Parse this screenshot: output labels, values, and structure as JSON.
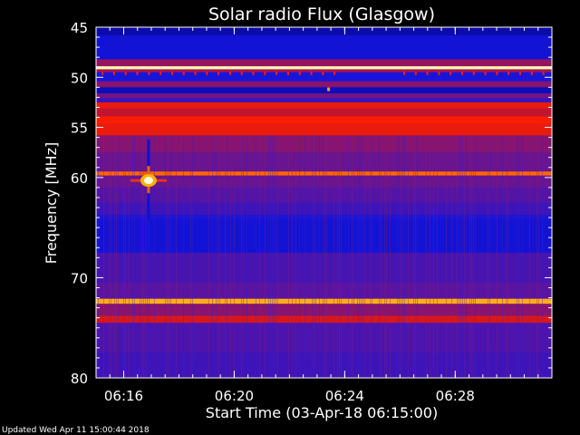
{
  "footer": "Updated Wed Apr 11 15:00:44 2018",
  "colors": {
    "background": "#000000",
    "text": "#ffffff",
    "frame": "#ffffff"
  },
  "chart_data": {
    "type": "heatmap",
    "title": "Solar radio Flux (Glasgow)",
    "xlabel": "Start Time (03-Apr-18 06:15:00)",
    "ylabel": "Frequency [MHz]",
    "colormap": "black-red-yellow-white",
    "x_start": "06:15:00",
    "x_end": "06:31:30",
    "xlim_minutes": [
      0,
      16.5
    ],
    "ylim": [
      45,
      80
    ],
    "y_reversed": true,
    "y_ticks": [
      45,
      50,
      55,
      60,
      70,
      80
    ],
    "x_ticks": [
      {
        "label": "06:16",
        "minutes": 1
      },
      {
        "label": "06:20",
        "minutes": 5
      },
      {
        "label": "06:24",
        "minutes": 9
      },
      {
        "label": "06:28",
        "minutes": 13
      }
    ],
    "background_intensity": 0.28,
    "bands": [
      {
        "freq_from": 45.0,
        "freq_to": 45.8,
        "intensity": 0.08
      },
      {
        "freq_from": 45.8,
        "freq_to": 48.2,
        "intensity": 0.14
      },
      {
        "freq_from": 48.2,
        "freq_to": 48.9,
        "intensity": 0.38
      },
      {
        "freq_from": 48.9,
        "freq_to": 49.2,
        "intensity": 0.97
      },
      {
        "freq_from": 49.2,
        "freq_to": 49.5,
        "intensity": 0.4
      },
      {
        "freq_from": 49.5,
        "freq_to": 50.4,
        "intensity": 0.16
      },
      {
        "freq_from": 50.4,
        "freq_to": 51.0,
        "intensity": 0.36
      },
      {
        "freq_from": 51.0,
        "freq_to": 51.6,
        "intensity": 0.1
      },
      {
        "freq_from": 51.6,
        "freq_to": 52.1,
        "intensity": 0.33
      },
      {
        "freq_from": 52.1,
        "freq_to": 52.5,
        "intensity": 0.22
      },
      {
        "freq_from": 52.5,
        "freq_to": 53.1,
        "intensity": 0.55
      },
      {
        "freq_from": 53.1,
        "freq_to": 53.9,
        "intensity": 0.44
      },
      {
        "freq_from": 53.9,
        "freq_to": 54.6,
        "intensity": 0.6
      },
      {
        "freq_from": 54.6,
        "freq_to": 55.8,
        "intensity": 0.55
      },
      {
        "freq_from": 55.8,
        "freq_to": 57.5,
        "intensity": 0.36
      },
      {
        "freq_from": 57.5,
        "freq_to": 59.4,
        "intensity": 0.32
      },
      {
        "freq_from": 59.4,
        "freq_to": 59.8,
        "intensity": 0.72
      },
      {
        "freq_from": 59.8,
        "freq_to": 61.0,
        "intensity": 0.32
      },
      {
        "freq_from": 61.0,
        "freq_to": 62.5,
        "intensity": 0.29
      },
      {
        "freq_from": 62.5,
        "freq_to": 63.7,
        "intensity": 0.24
      },
      {
        "freq_from": 63.7,
        "freq_to": 64.2,
        "intensity": 0.17
      },
      {
        "freq_from": 64.2,
        "freq_to": 67.5,
        "intensity": 0.14
      },
      {
        "freq_from": 67.5,
        "freq_to": 70.5,
        "intensity": 0.26
      },
      {
        "freq_from": 70.5,
        "freq_to": 72.1,
        "intensity": 0.3
      },
      {
        "freq_from": 72.1,
        "freq_to": 72.6,
        "intensity": 0.82
      },
      {
        "freq_from": 72.6,
        "freq_to": 73.8,
        "intensity": 0.36
      },
      {
        "freq_from": 73.8,
        "freq_to": 74.5,
        "intensity": 0.5
      },
      {
        "freq_from": 74.5,
        "freq_to": 77.5,
        "intensity": 0.27
      },
      {
        "freq_from": 77.5,
        "freq_to": 80.0,
        "intensity": 0.24
      }
    ],
    "burst": {
      "minutes": 1.9,
      "freq": 60.3,
      "intensity": 1.0
    },
    "dots": {
      "freq": 49.6,
      "intensity": 0.6
    },
    "spot": {
      "minutes": 8.4,
      "freq": 51.2,
      "intensity": 0.8
    }
  }
}
